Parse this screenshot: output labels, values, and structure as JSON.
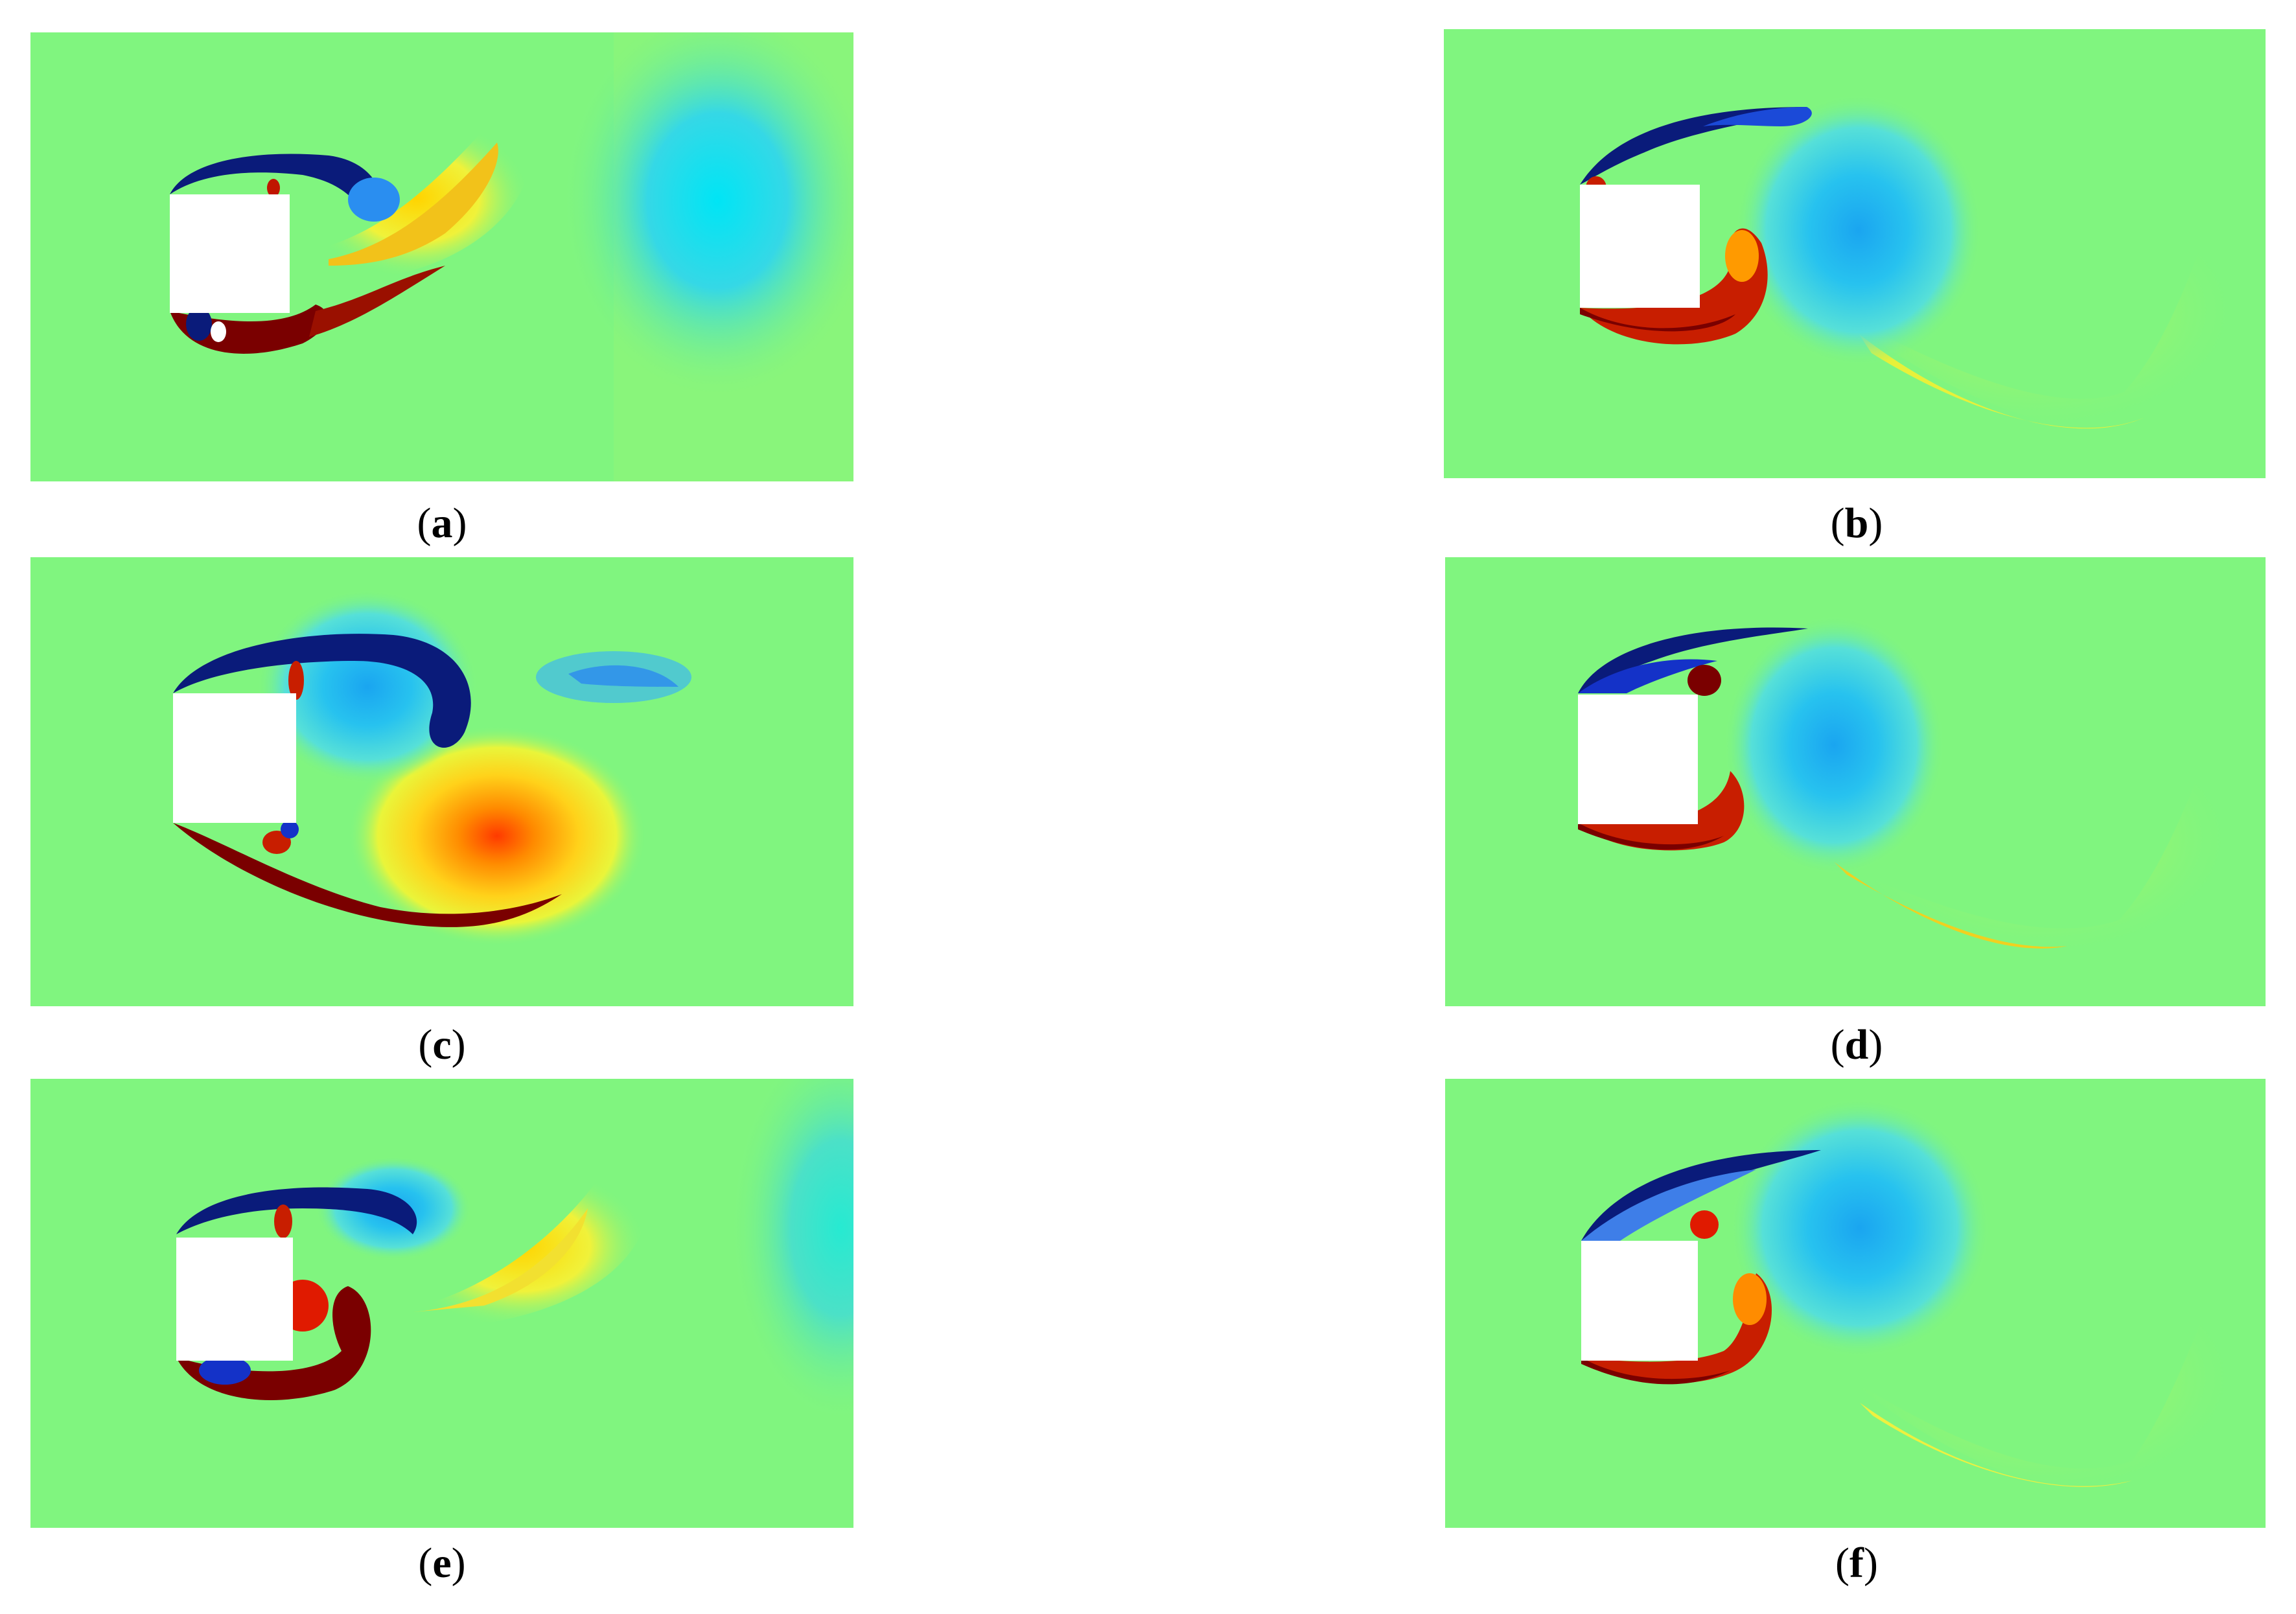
{
  "figure": {
    "colors": {
      "background_field": "#80f57f",
      "deep_red": "#7a0000",
      "red": "#e01a00",
      "orange": "#ff8c00",
      "yellow": "#f7e92a",
      "yellow_green": "#c8f25a",
      "cyan": "#1ee3ee",
      "light_blue": "#3db8f0",
      "blue": "#1432c8",
      "deep_blue": "#0a1b7a",
      "cylinder": "#ffffff"
    },
    "panels": [
      {
        "label": "a",
        "open": "(",
        "close": ")"
      },
      {
        "label": "b",
        "open": "(",
        "close": ")"
      },
      {
        "label": "c",
        "open": "(",
        "close": ")"
      },
      {
        "label": "d",
        "open": "(",
        "close": ")"
      },
      {
        "label": "e",
        "open": "(",
        "close": ")"
      },
      {
        "label": "f",
        "open": "(",
        "close": ")"
      }
    ]
  }
}
